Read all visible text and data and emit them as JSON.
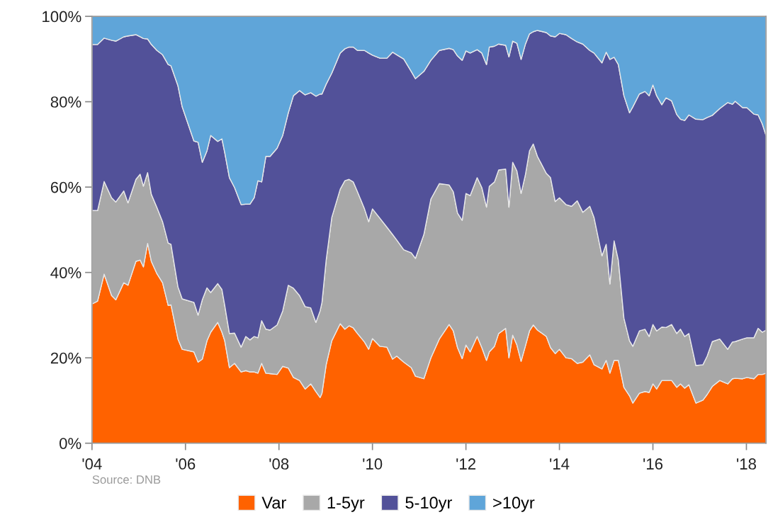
{
  "chart_data": {
    "type": "area",
    "stacked": true,
    "x": [
      2004.0,
      2004.12,
      2004.26,
      2004.42,
      2004.51,
      2004.68,
      2004.77,
      2004.94,
      2005.03,
      2005.1,
      2005.19,
      2005.27,
      2005.39,
      2005.51,
      2005.63,
      2005.69,
      2005.84,
      2005.93,
      2006.18,
      2006.27,
      2006.36,
      2006.46,
      2006.54,
      2006.69,
      2006.78,
      2006.84,
      2006.94,
      2007.05,
      2007.19,
      2007.29,
      2007.38,
      2007.47,
      2007.55,
      2007.63,
      2007.72,
      2007.81,
      2007.96,
      2008.08,
      2008.2,
      2008.31,
      2008.44,
      2008.56,
      2008.68,
      2008.79,
      2008.88,
      2008.92,
      2009.01,
      2009.13,
      2009.31,
      2009.41,
      2009.5,
      2009.59,
      2009.68,
      2009.83,
      2009.92,
      2010.0,
      2010.16,
      2010.31,
      2010.43,
      2010.52,
      2010.67,
      2010.83,
      2010.92,
      2011.1,
      2011.25,
      2011.43,
      2011.64,
      2011.73,
      2011.82,
      2011.92,
      2012.0,
      2012.09,
      2012.24,
      2012.34,
      2012.44,
      2012.5,
      2012.61,
      2012.7,
      2012.85,
      2012.92,
      2013.0,
      2013.09,
      2013.18,
      2013.27,
      2013.36,
      2013.44,
      2013.53,
      2013.72,
      2013.81,
      2013.91,
      2014.0,
      2014.14,
      2014.26,
      2014.38,
      2014.5,
      2014.65,
      2014.74,
      2014.91,
      2015.0,
      2015.08,
      2015.17,
      2015.26,
      2015.38,
      2015.5,
      2015.57,
      2015.71,
      2015.83,
      2015.92,
      2016.0,
      2016.08,
      2016.19,
      2016.28,
      2016.4,
      2016.51,
      2016.59,
      2016.68,
      2016.77,
      2016.92,
      2017.07,
      2017.16,
      2017.27,
      2017.43,
      2017.6,
      2017.7,
      2017.76,
      2017.92,
      2018.01,
      2018.16,
      2018.25,
      2018.34,
      2018.42
    ],
    "series": [
      {
        "name": "Var",
        "color": "#ff6200",
        "values": [
          32.6,
          33.3,
          39.6,
          34.6,
          33.6,
          37.6,
          37.0,
          42.6,
          42.9,
          41.3,
          46.8,
          42.6,
          39.7,
          37.6,
          32.3,
          32.4,
          24.4,
          22.0,
          21.4,
          19.0,
          19.7,
          24.0,
          26.0,
          28.3,
          26.0,
          24.0,
          17.7,
          18.7,
          16.7,
          17.0,
          16.7,
          16.7,
          16.4,
          18.7,
          16.4,
          16.3,
          16.1,
          18.0,
          17.6,
          15.4,
          14.7,
          12.7,
          13.9,
          12.1,
          10.7,
          11.7,
          18.4,
          24.0,
          28.0,
          26.7,
          27.5,
          27.0,
          25.7,
          23.7,
          22.0,
          24.5,
          22.7,
          22.5,
          19.7,
          20.4,
          19.0,
          17.7,
          15.7,
          15.1,
          20.0,
          24.4,
          27.8,
          26.3,
          22.4,
          19.8,
          23.0,
          21.4,
          25.0,
          22.4,
          19.4,
          21.4,
          22.7,
          25.7,
          26.9,
          20.0,
          25.3,
          23.0,
          19.2,
          22.7,
          26.3,
          27.7,
          26.5,
          25.0,
          22.4,
          21.0,
          22.0,
          20.0,
          19.8,
          18.7,
          19.0,
          20.7,
          18.4,
          17.4,
          19.4,
          16.4,
          19.4,
          19.4,
          13.1,
          11.1,
          9.4,
          11.7,
          12.1,
          11.9,
          13.9,
          12.7,
          14.7,
          14.7,
          14.7,
          13.1,
          13.9,
          12.9,
          13.7,
          9.4,
          10.1,
          11.4,
          13.3,
          14.7,
          13.9,
          15.1,
          15.2,
          15.1,
          15.4,
          15.1,
          16.1,
          16.1,
          16.4
        ]
      },
      {
        "name": "1-5yr",
        "color": "#a8a8a8",
        "values": [
          21.9,
          21.2,
          21.7,
          22.9,
          22.9,
          21.5,
          19.3,
          19.2,
          20.1,
          18.9,
          16.6,
          15.7,
          15.5,
          14.3,
          14.6,
          14.2,
          12.2,
          11.8,
          11.6,
          11.0,
          13.9,
          12.4,
          9.3,
          9.1,
          10.0,
          8.3,
          8.0,
          7.1,
          5.8,
          8.0,
          7.5,
          8.3,
          8.3,
          10.0,
          10.3,
          10.2,
          11.6,
          13.0,
          19.4,
          20.9,
          19.9,
          19.3,
          17.8,
          16.2,
          20.3,
          21.3,
          24.5,
          28.9,
          31.5,
          34.8,
          34.3,
          34.2,
          33.2,
          31.2,
          29.9,
          30.4,
          30.0,
          28.1,
          29.2,
          27.2,
          26.3,
          26.9,
          27.6,
          33.8,
          37.2,
          36.4,
          32.7,
          32.6,
          31.5,
          32.4,
          35.5,
          36.6,
          37.2,
          37.5,
          35.9,
          38.8,
          38.5,
          38.3,
          37.3,
          35.3,
          40.5,
          40.8,
          39.3,
          40.1,
          42.2,
          42.4,
          40.7,
          38.2,
          39.8,
          35.6,
          35.5,
          35.9,
          35.7,
          38.1,
          35.1,
          34.8,
          34.5,
          26.5,
          27.2,
          20.9,
          28.0,
          23.5,
          16.2,
          12.9,
          13.3,
          14.6,
          14.6,
          13.1,
          13.9,
          13.6,
          12.5,
          12.4,
          13.1,
          12.6,
          12.8,
          12.1,
          12.0,
          8.8,
          8.3,
          9.0,
          10.5,
          9.7,
          8.1,
          8.6,
          8.6,
          9.3,
          9.3,
          9.6,
          10.8,
          9.9,
          10.1
        ]
      },
      {
        "name": "5-10yr",
        "color": "#525199",
        "values": [
          38.9,
          38.9,
          33.6,
          36.9,
          37.7,
          36.1,
          39.1,
          33.9,
          32.2,
          34.6,
          31.3,
          35.1,
          36.8,
          39.1,
          41.8,
          41.8,
          47.1,
          45.0,
          37.8,
          40.5,
          32.2,
          32.1,
          36.8,
          33.3,
          35.3,
          35.8,
          36.5,
          34.1,
          33.4,
          31.0,
          31.8,
          32.5,
          36.8,
          32.5,
          40.5,
          40.7,
          41.4,
          41.1,
          40.4,
          45.1,
          48.0,
          49.6,
          50.4,
          53.0,
          50.8,
          48.8,
          41.2,
          33.8,
          31.9,
          30.9,
          31.0,
          31.6,
          33.1,
          37.1,
          39.5,
          36.0,
          37.5,
          39.6,
          42.7,
          43.4,
          44.7,
          42.5,
          42.1,
          38.2,
          32.5,
          31.2,
          32.0,
          33.3,
          36.8,
          37.5,
          33.4,
          33.4,
          30.0,
          31.5,
          33.4,
          32.6,
          31.8,
          29.5,
          29.0,
          35.2,
          28.4,
          29.9,
          31.4,
          30.6,
          27.4,
          26.3,
          29.5,
          33.0,
          33.2,
          38.6,
          38.5,
          39.8,
          39.3,
          37.2,
          39.4,
          36.5,
          38.5,
          45.2,
          45.0,
          52.6,
          43.0,
          45.8,
          52.1,
          53.4,
          56.1,
          55.5,
          55.7,
          56.4,
          56.1,
          55.1,
          52.1,
          53.8,
          52.4,
          51.3,
          49.2,
          50.6,
          51.2,
          57.7,
          57.4,
          55.9,
          53.0,
          54.0,
          57.8,
          55.7,
          56.3,
          54.2,
          53.9,
          52.4,
          50.0,
          48.8,
          45.6
        ]
      },
      {
        "name": ">10yr",
        "color": "#5fa5d9",
        "values": [
          6.6,
          6.6,
          5.1,
          5.6,
          5.8,
          4.8,
          4.6,
          4.3,
          4.8,
          5.2,
          5.3,
          6.6,
          8.0,
          9.0,
          11.3,
          11.6,
          16.3,
          21.2,
          29.2,
          29.5,
          34.2,
          31.5,
          27.9,
          29.3,
          28.7,
          31.9,
          37.8,
          40.1,
          44.1,
          44.0,
          44.0,
          42.5,
          38.5,
          38.8,
          32.8,
          32.8,
          30.9,
          27.9,
          22.6,
          18.6,
          17.4,
          18.4,
          17.9,
          18.7,
          18.2,
          18.2,
          15.9,
          13.3,
          8.6,
          7.6,
          7.2,
          7.2,
          8.0,
          8.0,
          8.6,
          9.1,
          9.8,
          9.8,
          8.4,
          9.0,
          10.0,
          12.9,
          14.6,
          12.9,
          10.3,
          8.0,
          7.5,
          7.8,
          9.3,
          10.3,
          8.1,
          8.6,
          7.8,
          8.6,
          11.3,
          7.2,
          7.0,
          6.5,
          6.8,
          9.5,
          5.8,
          6.3,
          10.1,
          6.6,
          4.1,
          3.6,
          3.3,
          3.8,
          4.6,
          4.8,
          4.0,
          4.3,
          5.2,
          6.0,
          6.5,
          8.0,
          8.6,
          10.9,
          8.4,
          10.1,
          9.6,
          11.3,
          18.6,
          22.6,
          21.2,
          18.2,
          17.6,
          18.6,
          16.1,
          18.6,
          20.7,
          19.1,
          19.8,
          23.0,
          24.1,
          24.4,
          23.1,
          24.1,
          24.2,
          23.7,
          23.2,
          21.6,
          20.2,
          20.6,
          19.9,
          21.4,
          21.4,
          22.9,
          23.1,
          25.2,
          27.9
        ]
      }
    ],
    "xlim": [
      2004.0,
      2018.42
    ],
    "xticks": [
      {
        "value": 2004,
        "label": "'04"
      },
      {
        "value": 2006,
        "label": "'06"
      },
      {
        "value": 2008,
        "label": "'08"
      },
      {
        "value": 2010,
        "label": "'10"
      },
      {
        "value": 2012,
        "label": "'12"
      },
      {
        "value": 2014,
        "label": "'14"
      },
      {
        "value": 2016,
        "label": "'16"
      },
      {
        "value": 2018,
        "label": "'18"
      }
    ],
    "ylim": [
      0,
      100
    ],
    "yticks": [
      {
        "value": 0,
        "label": "0%"
      },
      {
        "value": 20,
        "label": "20%"
      },
      {
        "value": 40,
        "label": "40%"
      },
      {
        "value": 60,
        "label": "60%"
      },
      {
        "value": 80,
        "label": "80%"
      },
      {
        "value": 100,
        "label": "100%"
      }
    ],
    "grid": false,
    "legend": "bottom",
    "annotations": [
      "Source: DNB"
    ]
  }
}
